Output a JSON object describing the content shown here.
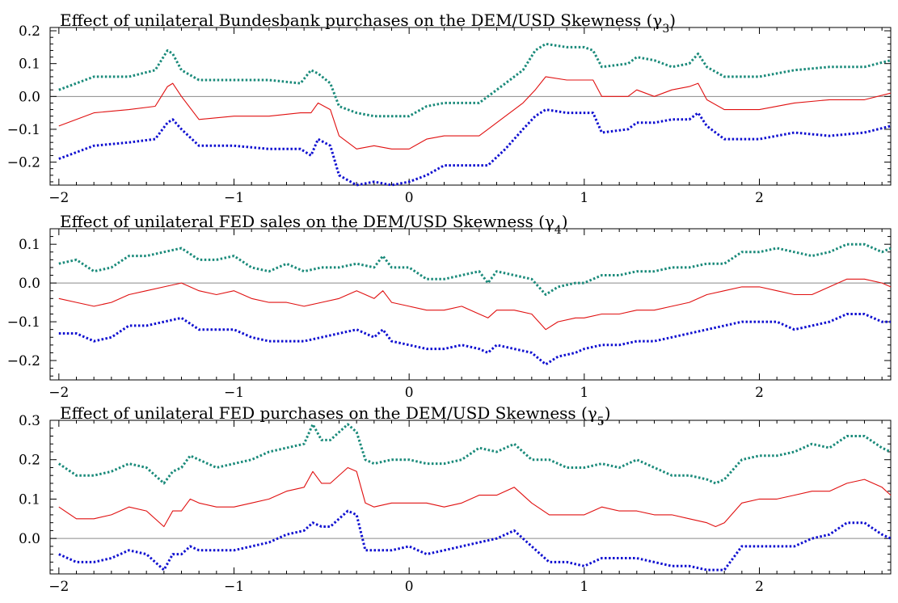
{
  "chart_data": [
    {
      "type": "line",
      "title": "Effect of unilateral Bundesbank purchases on the DEM/USD Skewness (γ",
      "title_sub": "3",
      "title_close": ")",
      "xlim": [
        -2.05,
        2.75
      ],
      "ylim": [
        -0.27,
        0.21
      ],
      "xticks": [
        -2,
        -1,
        0,
        1,
        2
      ],
      "xtick_labels": [
        "−2",
        "−1",
        "0",
        "1",
        "2"
      ],
      "yticks": [
        -0.2,
        -0.1,
        0.0,
        0.1,
        0.2
      ],
      "ytick_labels": [
        "−0.2",
        "−0.1",
        "0.0",
        "0.1",
        "0.2"
      ],
      "zero_line": 0,
      "x": [
        -2.0,
        -1.8,
        -1.6,
        -1.45,
        -1.38,
        -1.35,
        -1.3,
        -1.2,
        -1.0,
        -0.8,
        -0.62,
        -0.56,
        -0.52,
        -0.45,
        -0.4,
        -0.3,
        -0.2,
        -0.1,
        0.0,
        0.1,
        0.2,
        0.3,
        0.4,
        0.45,
        0.55,
        0.65,
        0.72,
        0.78,
        0.9,
        1.0,
        1.05,
        1.1,
        1.25,
        1.3,
        1.4,
        1.5,
        1.6,
        1.65,
        1.7,
        1.8,
        2.0,
        2.2,
        2.4,
        2.6,
        2.75
      ],
      "series": [
        {
          "color": "#1a8a7a",
          "dash": "dotted",
          "values": [
            0.02,
            0.06,
            0.06,
            0.08,
            0.14,
            0.13,
            0.08,
            0.05,
            0.05,
            0.05,
            0.04,
            0.08,
            0.07,
            0.04,
            -0.03,
            -0.05,
            -0.06,
            -0.06,
            -0.06,
            -0.03,
            -0.02,
            -0.02,
            -0.02,
            0.0,
            0.04,
            0.08,
            0.14,
            0.16,
            0.15,
            0.15,
            0.14,
            0.09,
            0.1,
            0.12,
            0.11,
            0.09,
            0.1,
            0.13,
            0.09,
            0.06,
            0.06,
            0.08,
            0.09,
            0.09,
            0.11
          ]
        },
        {
          "color": "#e01010",
          "dash": "solid",
          "values": [
            -0.09,
            -0.05,
            -0.04,
            -0.03,
            0.03,
            0.04,
            0.0,
            -0.07,
            -0.06,
            -0.06,
            -0.05,
            -0.05,
            -0.02,
            -0.04,
            -0.12,
            -0.16,
            -0.15,
            -0.16,
            -0.16,
            -0.13,
            -0.12,
            -0.12,
            -0.12,
            -0.1,
            -0.06,
            -0.02,
            0.02,
            0.06,
            0.05,
            0.05,
            0.05,
            0.0,
            0.0,
            0.02,
            0.0,
            0.02,
            0.03,
            0.04,
            -0.01,
            -0.04,
            -0.04,
            -0.02,
            -0.01,
            -0.01,
            0.01
          ]
        },
        {
          "color": "#1010d0",
          "dash": "dotted",
          "values": [
            -0.19,
            -0.15,
            -0.14,
            -0.13,
            -0.08,
            -0.07,
            -0.1,
            -0.15,
            -0.15,
            -0.16,
            -0.16,
            -0.18,
            -0.13,
            -0.15,
            -0.24,
            -0.27,
            -0.26,
            -0.27,
            -0.26,
            -0.24,
            -0.21,
            -0.21,
            -0.21,
            -0.21,
            -0.16,
            -0.1,
            -0.06,
            -0.04,
            -0.05,
            -0.05,
            -0.05,
            -0.11,
            -0.1,
            -0.08,
            -0.08,
            -0.07,
            -0.07,
            -0.05,
            -0.09,
            -0.13,
            -0.13,
            -0.11,
            -0.12,
            -0.11,
            -0.09
          ]
        }
      ]
    },
    {
      "type": "line",
      "title": "Effect of unilateral FED sales on the DEM/USD Skewness (γ",
      "title_sub": "4",
      "title_close": ")",
      "xlim": [
        -2.05,
        2.75
      ],
      "ylim": [
        -0.25,
        0.14
      ],
      "xticks": [
        -2,
        -1,
        0,
        1,
        2
      ],
      "xtick_labels": [
        "−2",
        "−1",
        "0",
        "1",
        "2"
      ],
      "yticks": [
        -0.2,
        -0.1,
        0.0,
        0.1
      ],
      "ytick_labels": [
        "−0.2",
        "−0.1",
        "0.0",
        "0.1"
      ],
      "zero_line": 0,
      "x": [
        -2.0,
        -1.9,
        -1.8,
        -1.7,
        -1.6,
        -1.5,
        -1.4,
        -1.3,
        -1.2,
        -1.1,
        -1.0,
        -0.9,
        -0.8,
        -0.7,
        -0.6,
        -0.5,
        -0.4,
        -0.3,
        -0.2,
        -0.15,
        -0.1,
        0.0,
        0.1,
        0.2,
        0.3,
        0.4,
        0.45,
        0.5,
        0.6,
        0.7,
        0.78,
        0.85,
        0.95,
        1.0,
        1.1,
        1.2,
        1.3,
        1.4,
        1.5,
        1.6,
        1.7,
        1.8,
        1.9,
        2.0,
        2.1,
        2.2,
        2.3,
        2.4,
        2.5,
        2.6,
        2.7,
        2.75
      ],
      "series": [
        {
          "color": "#1a8a7a",
          "dash": "dotted",
          "values": [
            0.05,
            0.06,
            0.03,
            0.04,
            0.07,
            0.07,
            0.08,
            0.09,
            0.06,
            0.06,
            0.07,
            0.04,
            0.03,
            0.05,
            0.03,
            0.04,
            0.04,
            0.05,
            0.04,
            0.07,
            0.04,
            0.04,
            0.01,
            0.01,
            0.02,
            0.03,
            0.0,
            0.03,
            0.02,
            0.01,
            -0.03,
            -0.01,
            0.0,
            0.0,
            0.02,
            0.02,
            0.03,
            0.03,
            0.04,
            0.04,
            0.05,
            0.05,
            0.08,
            0.08,
            0.09,
            0.08,
            0.07,
            0.08,
            0.1,
            0.1,
            0.08,
            0.09
          ]
        },
        {
          "color": "#e01010",
          "dash": "solid",
          "values": [
            -0.04,
            -0.05,
            -0.06,
            -0.05,
            -0.03,
            -0.02,
            -0.01,
            0.0,
            -0.02,
            -0.03,
            -0.02,
            -0.04,
            -0.05,
            -0.05,
            -0.06,
            -0.05,
            -0.04,
            -0.02,
            -0.04,
            -0.02,
            -0.05,
            -0.06,
            -0.07,
            -0.07,
            -0.06,
            -0.08,
            -0.09,
            -0.07,
            -0.07,
            -0.08,
            -0.12,
            -0.1,
            -0.09,
            -0.09,
            -0.08,
            -0.08,
            -0.07,
            -0.07,
            -0.06,
            -0.05,
            -0.03,
            -0.02,
            -0.01,
            -0.01,
            -0.02,
            -0.03,
            -0.03,
            -0.01,
            0.01,
            0.01,
            0.0,
            -0.01
          ]
        },
        {
          "color": "#1010d0",
          "dash": "dotted",
          "values": [
            -0.13,
            -0.13,
            -0.15,
            -0.14,
            -0.11,
            -0.11,
            -0.1,
            -0.09,
            -0.12,
            -0.12,
            -0.12,
            -0.14,
            -0.15,
            -0.15,
            -0.15,
            -0.14,
            -0.13,
            -0.12,
            -0.14,
            -0.12,
            -0.15,
            -0.16,
            -0.17,
            -0.17,
            -0.16,
            -0.17,
            -0.18,
            -0.16,
            -0.17,
            -0.18,
            -0.21,
            -0.19,
            -0.18,
            -0.17,
            -0.16,
            -0.16,
            -0.15,
            -0.15,
            -0.14,
            -0.13,
            -0.12,
            -0.11,
            -0.1,
            -0.1,
            -0.1,
            -0.12,
            -0.11,
            -0.1,
            -0.08,
            -0.08,
            -0.1,
            -0.1
          ]
        }
      ]
    },
    {
      "type": "line",
      "title": "Effect of unilateral FED purchases on the DEM/USD Skewness (γ",
      "title_sub": "5",
      "title_close": ")",
      "xlim": [
        -2.05,
        2.75
      ],
      "ylim": [
        -0.09,
        0.3
      ],
      "xticks": [
        -2,
        -1,
        0,
        1,
        2
      ],
      "xtick_labels": [
        "−2",
        "−1",
        "0",
        "1",
        "2"
      ],
      "yticks": [
        0.0,
        0.1,
        0.2,
        0.3
      ],
      "ytick_labels": [
        "0.0",
        "0.1",
        "0.2",
        "0.3"
      ],
      "zero_line": 0,
      "x": [
        -2.0,
        -1.9,
        -1.8,
        -1.7,
        -1.6,
        -1.5,
        -1.4,
        -1.35,
        -1.3,
        -1.25,
        -1.2,
        -1.1,
        -1.0,
        -0.9,
        -0.8,
        -0.7,
        -0.6,
        -0.55,
        -0.5,
        -0.45,
        -0.35,
        -0.3,
        -0.25,
        -0.2,
        -0.1,
        0.0,
        0.1,
        0.2,
        0.3,
        0.4,
        0.5,
        0.6,
        0.7,
        0.8,
        0.9,
        1.0,
        1.1,
        1.2,
        1.3,
        1.4,
        1.5,
        1.6,
        1.7,
        1.75,
        1.8,
        1.9,
        2.0,
        2.1,
        2.2,
        2.3,
        2.4,
        2.5,
        2.6,
        2.7,
        2.75
      ],
      "series": [
        {
          "color": "#1a8a7a",
          "dash": "dotted",
          "values": [
            0.19,
            0.16,
            0.16,
            0.17,
            0.19,
            0.18,
            0.14,
            0.17,
            0.18,
            0.21,
            0.2,
            0.18,
            0.19,
            0.2,
            0.22,
            0.23,
            0.24,
            0.29,
            0.25,
            0.25,
            0.29,
            0.27,
            0.2,
            0.19,
            0.2,
            0.2,
            0.19,
            0.19,
            0.2,
            0.23,
            0.22,
            0.24,
            0.2,
            0.2,
            0.18,
            0.18,
            0.19,
            0.18,
            0.2,
            0.18,
            0.16,
            0.16,
            0.15,
            0.14,
            0.15,
            0.2,
            0.21,
            0.21,
            0.22,
            0.24,
            0.23,
            0.26,
            0.26,
            0.23,
            0.22
          ]
        },
        {
          "color": "#e01010",
          "dash": "solid",
          "values": [
            0.08,
            0.05,
            0.05,
            0.06,
            0.08,
            0.07,
            0.03,
            0.07,
            0.07,
            0.1,
            0.09,
            0.08,
            0.08,
            0.09,
            0.1,
            0.12,
            0.13,
            0.17,
            0.14,
            0.14,
            0.18,
            0.17,
            0.09,
            0.08,
            0.09,
            0.09,
            0.09,
            0.08,
            0.09,
            0.11,
            0.11,
            0.13,
            0.09,
            0.06,
            0.06,
            0.06,
            0.08,
            0.07,
            0.07,
            0.06,
            0.06,
            0.05,
            0.04,
            0.03,
            0.04,
            0.09,
            0.1,
            0.1,
            0.11,
            0.12,
            0.12,
            0.14,
            0.15,
            0.13,
            0.11
          ]
        },
        {
          "color": "#1010d0",
          "dash": "dotted",
          "values": [
            -0.04,
            -0.06,
            -0.06,
            -0.05,
            -0.03,
            -0.04,
            -0.08,
            -0.04,
            -0.04,
            -0.02,
            -0.03,
            -0.03,
            -0.03,
            -0.02,
            -0.01,
            0.01,
            0.02,
            0.04,
            0.03,
            0.03,
            0.07,
            0.06,
            -0.03,
            -0.03,
            -0.03,
            -0.02,
            -0.04,
            -0.03,
            -0.02,
            -0.01,
            0.0,
            0.02,
            -0.02,
            -0.06,
            -0.06,
            -0.07,
            -0.05,
            -0.05,
            -0.05,
            -0.06,
            -0.07,
            -0.07,
            -0.08,
            -0.08,
            -0.08,
            -0.02,
            -0.02,
            -0.02,
            -0.02,
            0.0,
            0.01,
            0.04,
            0.04,
            0.01,
            0.0
          ]
        }
      ]
    }
  ]
}
